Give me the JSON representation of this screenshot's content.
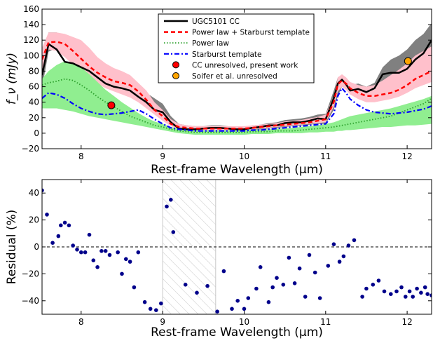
{
  "figure": {
    "top_panel": {
      "ylabel": "f_ν (mJy)",
      "xlabel": "Rest-frame Wavelength (μm)"
    },
    "bottom_panel": {
      "ylabel": "Residual (%)",
      "xlabel": "Rest-frame Wavelength (μm)"
    }
  },
  "chart_data": [
    {
      "type": "line",
      "panel": "top",
      "xlabel": "Rest-frame Wavelength (μm)",
      "ylabel": "f_ν (mJy)",
      "xlim": [
        7.52,
        12.3
      ],
      "ylim": [
        -20,
        160
      ],
      "x_ticks": [
        8,
        9,
        10,
        11,
        12
      ],
      "y_ticks": [
        -20,
        0,
        20,
        40,
        60,
        80,
        100,
        120,
        140,
        160
      ],
      "legend_position": "upper center",
      "legend": [
        {
          "label": "UGC5101 CC",
          "style": "solid-line",
          "color": "#000000"
        },
        {
          "label": "Power law + Starburst template",
          "style": "dashed-line",
          "color": "#ff0000"
        },
        {
          "label": "Power law",
          "style": "dotted-line",
          "color": "#2ca02c"
        },
        {
          "label": "Starburst template",
          "style": "dashdot-line",
          "color": "#0000ff"
        },
        {
          "label": "CC unresolved, present work",
          "style": "marker",
          "color": "#ff0000"
        },
        {
          "label": "Soifer et al. unresolved",
          "style": "marker",
          "color": "#ffa500"
        }
      ],
      "x": [
        7.52,
        7.6,
        7.7,
        7.8,
        7.9,
        8.0,
        8.1,
        8.2,
        8.3,
        8.4,
        8.5,
        8.6,
        8.7,
        8.8,
        8.9,
        9.0,
        9.1,
        9.2,
        9.3,
        9.4,
        9.5,
        9.6,
        9.7,
        9.8,
        9.9,
        10.0,
        10.1,
        10.2,
        10.3,
        10.4,
        10.5,
        10.6,
        10.7,
        10.8,
        10.9,
        11.0,
        11.1,
        11.15,
        11.2,
        11.25,
        11.3,
        11.4,
        11.5,
        11.6,
        11.7,
        11.8,
        11.9,
        12.0,
        12.1,
        12.2,
        12.3
      ],
      "series": [
        {
          "name": "UGC5101 CC",
          "color": "#000000",
          "values": [
            75,
            115,
            108,
            92,
            90,
            85,
            80,
            72,
            64,
            60,
            58,
            55,
            47,
            40,
            30,
            27,
            14,
            6,
            5,
            5,
            6,
            7,
            7,
            6,
            5,
            5,
            7,
            8,
            10,
            10,
            13,
            14,
            14,
            16,
            19,
            18,
            45,
            64,
            69,
            63,
            55,
            57,
            53,
            58,
            76,
            78,
            78,
            83,
            95,
            103,
            120
          ]
        },
        {
          "name": "Power law + Starburst template",
          "color": "#ff0000",
          "values": [
            95,
            117,
            118,
            115,
            106,
            96,
            86,
            78,
            72,
            67,
            65,
            62,
            54,
            43,
            30,
            22,
            12,
            8,
            7,
            6,
            6,
            6,
            6,
            6,
            6,
            6,
            7,
            8,
            9,
            10,
            11,
            12,
            13,
            14,
            16,
            18,
            40,
            63,
            68,
            64,
            58,
            52,
            48,
            48,
            50,
            52,
            56,
            62,
            70,
            75,
            80
          ]
        },
        {
          "name": "Power law",
          "color": "#2ca02c",
          "values": [
            62,
            65,
            67,
            70,
            68,
            62,
            55,
            47,
            40,
            34,
            28,
            22,
            18,
            14,
            10,
            8,
            5,
            3,
            2,
            1,
            1,
            1,
            1,
            1,
            1,
            1,
            2,
            2,
            2,
            3,
            3,
            3,
            4,
            5,
            6,
            7,
            8,
            9,
            10,
            11,
            12,
            14,
            16,
            18,
            20,
            22,
            26,
            30,
            34,
            38,
            45
          ]
        },
        {
          "name": "Starburst template",
          "color": "#0000ff",
          "values": [
            45,
            52,
            50,
            45,
            38,
            32,
            28,
            25,
            24,
            25,
            26,
            28,
            30,
            25,
            18,
            12,
            7,
            5,
            4,
            3,
            3,
            3,
            3,
            3,
            3,
            3,
            4,
            4,
            5,
            6,
            7,
            8,
            9,
            10,
            11,
            12,
            25,
            48,
            58,
            52,
            44,
            36,
            30,
            27,
            26,
            25,
            26,
            27,
            29,
            31,
            35
          ]
        }
      ],
      "bands": [
        {
          "color": "#808080",
          "lower": [
            58,
            105,
            110,
            100,
            88,
            75,
            70,
            66,
            60,
            57,
            55,
            50,
            43,
            35,
            27,
            20,
            12,
            4,
            3,
            3,
            4,
            4,
            4,
            4,
            3,
            3,
            4,
            5,
            6,
            7,
            8,
            9,
            10,
            11,
            12,
            12,
            30,
            48,
            60,
            58,
            50,
            50,
            48,
            52,
            62,
            68,
            72,
            76,
            84,
            90,
            100
          ],
          "upper": [
            90,
            130,
            130,
            120,
            112,
            105,
            98,
            90,
            85,
            80,
            75,
            68,
            60,
            52,
            45,
            38,
            22,
            12,
            10,
            9,
            9,
            10,
            10,
            9,
            8,
            8,
            10,
            11,
            13,
            14,
            17,
            18,
            19,
            21,
            24,
            25,
            55,
            72,
            75,
            70,
            62,
            64,
            60,
            65,
            85,
            95,
            100,
            108,
            120,
            128,
            142
          ]
        },
        {
          "color": "#ffc0cb",
          "lower": [
            80,
            108,
            106,
            98,
            88,
            78,
            70,
            64,
            58,
            54,
            50,
            46,
            40,
            32,
            24,
            16,
            9,
            5,
            5,
            4,
            4,
            4,
            4,
            4,
            4,
            4,
            5,
            6,
            7,
            8,
            9,
            10,
            11,
            12,
            13,
            14,
            34,
            54,
            60,
            56,
            50,
            44,
            40,
            40,
            42,
            44,
            47,
            52,
            58,
            62,
            66
          ],
          "upper": [
            110,
            130,
            130,
            128,
            124,
            120,
            110,
            98,
            90,
            84,
            80,
            75,
            65,
            55,
            40,
            30,
            18,
            12,
            10,
            9,
            9,
            9,
            9,
            9,
            9,
            9,
            10,
            11,
            12,
            13,
            15,
            16,
            17,
            19,
            21,
            24,
            48,
            72,
            76,
            72,
            66,
            62,
            60,
            62,
            68,
            75,
            82,
            90,
            100,
            106,
            112
          ]
        },
        {
          "color": "#90ee90",
          "lower": [
            32,
            32,
            32,
            30,
            28,
            25,
            22,
            20,
            18,
            16,
            14,
            12,
            10,
            8,
            6,
            4,
            2,
            0,
            -1,
            -2,
            -2,
            -2,
            -2,
            -2,
            -2,
            -2,
            -1,
            -1,
            -1,
            0,
            0,
            0,
            0,
            1,
            1,
            2,
            2,
            3,
            3,
            4,
            4,
            5,
            6,
            7,
            8,
            8,
            9,
            10,
            10,
            11,
            12
          ],
          "upper": [
            70,
            80,
            88,
            93,
            90,
            85,
            76,
            66,
            56,
            48,
            40,
            33,
            26,
            20,
            15,
            12,
            8,
            6,
            5,
            4,
            4,
            4,
            4,
            4,
            4,
            4,
            5,
            5,
            5,
            6,
            6,
            7,
            8,
            9,
            10,
            12,
            14,
            16,
            18,
            20,
            22,
            24,
            26,
            28,
            30,
            32,
            35,
            38,
            41,
            44,
            48
          ]
        }
      ],
      "points": [
        {
          "name": "CC unresolved, present work",
          "x": 8.37,
          "y": 36,
          "color": "#ff0000"
        },
        {
          "name": "Soifer et al. unresolved",
          "x": 12.01,
          "y": 93,
          "color": "#ffa500"
        }
      ]
    },
    {
      "type": "scatter",
      "panel": "bottom",
      "xlabel": "Rest-frame Wavelength (μm)",
      "ylabel": "Residual (%)",
      "xlim": [
        7.52,
        12.3
      ],
      "ylim": [
        -50,
        50
      ],
      "x_ticks": [
        8,
        9,
        10,
        11,
        12
      ],
      "y_ticks": [
        -40,
        -20,
        0,
        20,
        40
      ],
      "reference_line": 0,
      "hatched_region": [
        9.0,
        9.65
      ],
      "marker_color": "#00008b",
      "x": [
        7.52,
        7.58,
        7.65,
        7.72,
        7.75,
        7.8,
        7.85,
        7.9,
        7.95,
        8.0,
        8.05,
        8.1,
        8.15,
        8.2,
        8.25,
        8.3,
        8.35,
        8.45,
        8.5,
        8.55,
        8.6,
        8.65,
        8.7,
        8.78,
        8.85,
        8.92,
        8.98,
        9.05,
        9.1,
        9.13,
        9.28,
        9.42,
        9.55,
        9.67,
        9.75,
        9.85,
        9.92,
        10.0,
        10.05,
        10.15,
        10.2,
        10.3,
        10.35,
        10.4,
        10.48,
        10.55,
        10.62,
        10.68,
        10.75,
        10.8,
        10.87,
        10.93,
        11.03,
        11.1,
        11.17,
        11.22,
        11.28,
        11.35,
        11.45,
        11.5,
        11.58,
        11.65,
        11.72,
        11.8,
        11.87,
        11.93,
        11.98,
        12.03,
        12.07,
        12.12,
        12.17,
        12.22,
        12.25,
        12.3
      ],
      "values": [
        42,
        24,
        3,
        8,
        16,
        18,
        16,
        1,
        -2,
        -4,
        -4,
        9,
        -10,
        -15,
        -3,
        -3,
        -6,
        -4,
        -20,
        -9,
        -11,
        -30,
        -4,
        -41,
        -46,
        -47,
        -42,
        30,
        35,
        11,
        -28,
        -34,
        -29,
        -48,
        -18,
        -46,
        -40,
        -46,
        -38,
        -31,
        -15,
        -41,
        -30,
        -23,
        -28,
        -8,
        -27,
        -16,
        -37,
        -6,
        -19,
        -38,
        -14,
        2,
        -11,
        -7,
        1,
        5,
        -37,
        -31,
        -28,
        -25,
        -33,
        -35,
        -33,
        -30,
        -37,
        -33,
        -37,
        -31,
        -34,
        -30,
        -35,
        -36
      ]
    }
  ]
}
